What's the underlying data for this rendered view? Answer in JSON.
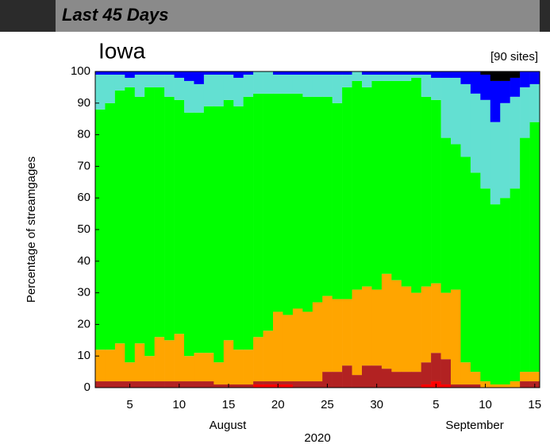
{
  "chart_data": {
    "type": "stacked-bar",
    "title": "Last 45 Days",
    "subtitle": "Iowa",
    "annotation": "[90 sites]",
    "y_label": "Percentage of streamgages",
    "x_months": [
      "August",
      "September"
    ],
    "x_year": "2020",
    "ylim": [
      0,
      100
    ],
    "yticks": [
      0,
      10,
      20,
      30,
      40,
      50,
      60,
      70,
      80,
      90,
      100
    ],
    "categories": [
      null,
      null,
      null,
      "5",
      null,
      null,
      null,
      null,
      "10",
      null,
      null,
      null,
      null,
      "15",
      null,
      null,
      null,
      null,
      "20",
      null,
      null,
      null,
      null,
      "25",
      null,
      null,
      null,
      null,
      "30",
      null,
      null,
      null,
      null,
      null,
      "5",
      null,
      null,
      null,
      null,
      "10",
      null,
      null,
      null,
      null,
      "15"
    ],
    "series": [
      {
        "color": "#ff0000",
        "values": [
          0,
          0,
          0,
          0,
          0,
          0,
          0,
          0,
          0,
          0,
          0,
          0,
          0,
          0,
          0,
          0,
          1,
          1,
          1,
          1,
          0,
          0,
          0,
          0,
          0,
          0,
          0,
          0,
          0,
          0,
          0,
          0,
          0,
          1,
          2,
          1,
          0,
          0,
          0,
          0,
          0,
          0,
          0,
          0,
          0
        ]
      },
      {
        "color": "#b22222",
        "values": [
          2,
          2,
          2,
          2,
          2,
          2,
          2,
          2,
          2,
          2,
          2,
          2,
          1,
          1,
          1,
          1,
          1,
          1,
          1,
          1,
          2,
          2,
          2,
          5,
          5,
          7,
          4,
          7,
          7,
          6,
          5,
          5,
          5,
          7,
          9,
          8,
          1,
          1,
          1,
          0,
          0,
          0,
          0,
          2,
          2
        ]
      },
      {
        "color": "#ffa500",
        "values": [
          10,
          10,
          12,
          6,
          12,
          8,
          14,
          13,
          15,
          8,
          9,
          9,
          7,
          14,
          11,
          11,
          14,
          16,
          22,
          21,
          23,
          22,
          25,
          24,
          23,
          21,
          27,
          25,
          24,
          30,
          29,
          27,
          25,
          24,
          22,
          21,
          30,
          7,
          4,
          2,
          1,
          1,
          2,
          3,
          3
        ]
      },
      {
        "color": "#00ff00",
        "values": [
          76,
          78,
          80,
          87,
          78,
          85,
          79,
          77,
          74,
          77,
          76,
          78,
          81,
          76,
          77,
          80,
          77,
          75,
          69,
          70,
          68,
          68,
          65,
          63,
          62,
          67,
          66,
          63,
          66,
          61,
          63,
          65,
          68,
          60,
          58,
          49,
          46,
          65,
          63,
          61,
          57,
          59,
          61,
          74,
          79
        ]
      },
      {
        "color": "#63e0d2",
        "values": [
          11,
          9,
          5,
          3,
          7,
          4,
          4,
          7,
          7,
          10,
          9,
          10,
          10,
          8,
          9,
          7,
          7,
          7,
          6,
          6,
          6,
          7,
          7,
          7,
          9,
          4,
          3,
          4,
          2,
          2,
          2,
          2,
          1,
          7,
          7,
          19,
          21,
          23,
          25,
          28,
          26,
          30,
          29,
          16,
          12
        ]
      },
      {
        "color": "#0000ff",
        "values": [
          1,
          1,
          1,
          2,
          1,
          1,
          1,
          1,
          2,
          3,
          4,
          1,
          1,
          1,
          2,
          1,
          0,
          0,
          1,
          1,
          1,
          1,
          1,
          1,
          1,
          1,
          0,
          1,
          1,
          1,
          1,
          1,
          1,
          1,
          2,
          2,
          2,
          4,
          7,
          8,
          13,
          7,
          6,
          5,
          4
        ]
      },
      {
        "color": "#000000",
        "values": [
          0,
          0,
          0,
          0,
          0,
          0,
          0,
          0,
          0,
          0,
          0,
          0,
          0,
          0,
          0,
          0,
          0,
          0,
          0,
          0,
          0,
          0,
          0,
          0,
          0,
          0,
          0,
          0,
          0,
          0,
          0,
          0,
          0,
          0,
          0,
          0,
          0,
          0,
          0,
          1,
          3,
          3,
          2,
          0,
          0
        ]
      }
    ]
  }
}
